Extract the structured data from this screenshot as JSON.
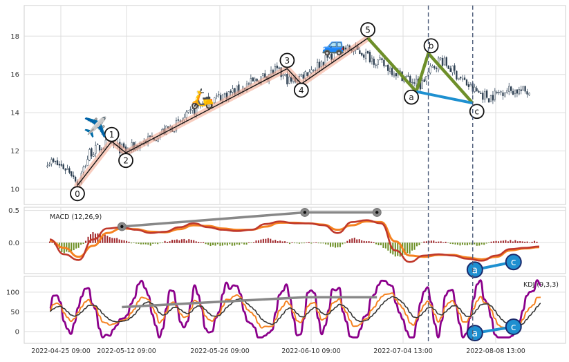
{
  "chart_data": {
    "type": "candlestick",
    "x_ticks": [
      "2022-04-25 09:00",
      "2022-05-12 09:00",
      "2022-05-26 09:00",
      "2022-06-10 09:00",
      "2022-07-04 13:00",
      "2022-08-08 13:00"
    ],
    "price_panel": {
      "y_ticks": [
        10,
        12,
        14,
        16,
        18
      ],
      "ylim": [
        9.2,
        19.6
      ],
      "grid": true,
      "trend": [
        {
          "i": 0,
          "p": 10.2
        },
        {
          "i": 6,
          "p": 11.9
        },
        {
          "i": 15,
          "p": 12.4
        },
        {
          "i": 24,
          "p": 12.0
        },
        {
          "i": 50,
          "p": 13.4
        },
        {
          "i": 62,
          "p": 14.5
        },
        {
          "i": 80,
          "p": 15.2
        },
        {
          "i": 98,
          "p": 16.2
        },
        {
          "i": 106,
          "p": 15.6
        },
        {
          "i": 118,
          "p": 16.4
        },
        {
          "i": 131,
          "p": 17.4
        },
        {
          "i": 140,
          "p": 17.2
        },
        {
          "i": 150,
          "p": 16.6
        },
        {
          "i": 160,
          "p": 16.0
        },
        {
          "i": 170,
          "p": 15.4
        },
        {
          "i": 175,
          "p": 16.2
        },
        {
          "i": 180,
          "p": 16.8
        },
        {
          "i": 188,
          "p": 16.0
        },
        {
          "i": 196,
          "p": 15.2
        },
        {
          "i": 204,
          "p": 14.8
        },
        {
          "i": 212,
          "p": 15.2
        },
        {
          "i": 224,
          "p": 15.1
        }
      ],
      "pre_trend": [
        {
          "i": -15,
          "p": 11.5
        },
        {
          "i": -8,
          "p": 11.2
        },
        {
          "i": -4,
          "p": 11.0
        },
        {
          "i": -1,
          "p": 10.6
        }
      ],
      "elliott_impulse": [
        {
          "label": "0",
          "i": 0,
          "p": 10.2
        },
        {
          "label": "1",
          "i": 17,
          "p": 12.5
        },
        {
          "label": "2",
          "i": 24,
          "p": 11.9
        },
        {
          "label": "3",
          "i": 104,
          "p": 16.3
        },
        {
          "label": "4",
          "i": 111,
          "p": 15.5
        },
        {
          "label": "5",
          "i": 144,
          "p": 17.9
        }
      ],
      "elliott_correction": [
        {
          "label": "5",
          "i": 144,
          "p": 17.9
        },
        {
          "label": "a",
          "i": 168,
          "p": 15.1
        },
        {
          "label": "b",
          "i": 174,
          "p": 17.1
        },
        {
          "label": "c",
          "i": 196,
          "p": 14.5
        }
      ],
      "emoji_markers": [
        {
          "emoji": "✈️",
          "i": 9,
          "p": 12.9
        },
        {
          "emoji": "🛵",
          "i": 62,
          "p": 14.4
        },
        {
          "emoji": "🚙",
          "i": 127,
          "p": 17.2
        }
      ],
      "vertical_lines_i": [
        174,
        196
      ]
    },
    "macd_panel": {
      "label": "MACD (12,26,9)",
      "y_ticks": [
        0.5,
        0.0
      ],
      "ylim": [
        -0.48,
        0.55
      ],
      "macd": [
        0.05,
        -0.18,
        -0.27,
        0.05,
        0.22,
        0.24,
        0.2,
        0.15,
        0.17,
        0.24,
        0.3,
        0.24,
        0.2,
        0.18,
        0.2,
        0.29,
        0.33,
        0.3,
        0.3,
        0.27,
        0.15,
        0.32,
        0.35,
        0.3,
        -0.12,
        -0.3,
        -0.2,
        -0.18,
        -0.2,
        -0.25,
        -0.28,
        -0.2,
        -0.1,
        -0.08,
        -0.06
      ],
      "signal": [
        0.03,
        -0.08,
        -0.22,
        -0.05,
        0.15,
        0.22,
        0.21,
        0.17,
        0.16,
        0.21,
        0.27,
        0.26,
        0.22,
        0.2,
        0.2,
        0.25,
        0.31,
        0.31,
        0.3,
        0.28,
        0.2,
        0.27,
        0.33,
        0.32,
        0.02,
        -0.2,
        -0.22,
        -0.19,
        -0.19,
        -0.23,
        -0.26,
        -0.22,
        -0.12,
        -0.09,
        -0.07
      ],
      "divergence_top": [
        {
          "i": 28,
          "v": 0.25
        },
        {
          "i": 99,
          "v": 0.47
        },
        {
          "i": 127,
          "v": 0.47
        }
      ],
      "divergence_bottom": [
        {
          "label": "a",
          "i": 165,
          "v": -0.42
        },
        {
          "label": "c",
          "i": 180,
          "v": -0.3
        }
      ]
    },
    "kdj_panel": {
      "label": "KDJ (9,3,3)",
      "y_ticks": [
        100,
        50,
        0
      ],
      "ylim": [
        -30,
        140
      ],
      "divergence_top": [
        {
          "i": 28,
          "v": 62
        },
        {
          "i": 99,
          "v": 87
        },
        {
          "i": 127,
          "v": 87
        }
      ],
      "divergence_bottom": [
        {
          "label": "a",
          "i": 165,
          "v": -4
        },
        {
          "label": "c",
          "i": 180,
          "v": 12
        }
      ]
    }
  }
}
